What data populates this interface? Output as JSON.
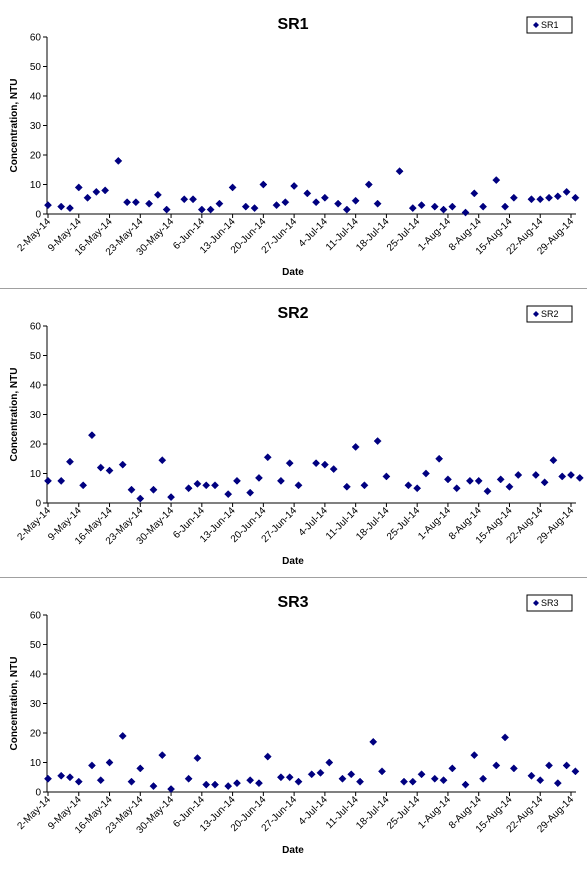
{
  "chart_data": [
    {
      "type": "scatter",
      "title": "SR1",
      "xlabel": "Date",
      "ylabel": "Concentration, NTU",
      "ylim": [
        0,
        60
      ],
      "yticks": [
        "0",
        "10",
        "20",
        "30",
        "40",
        "50",
        "60"
      ],
      "xlim": [
        "2-May-14",
        "29-Aug-14"
      ],
      "xticks": [
        "2-May-14",
        "9-May-14",
        "16-May-14",
        "23-May-14",
        "30-May-14",
        "6-Jun-14",
        "13-Jun-14",
        "20-Jun-14",
        "27-Jun-14",
        "4-Jul-14",
        "11-Jul-14",
        "18-Jul-14",
        "25-Jul-14",
        "1-Aug-14",
        "8-Aug-14",
        "15-Aug-14",
        "22-Aug-14",
        "29-Aug-14"
      ],
      "grid": false,
      "legend": "top-right",
      "series": [
        {
          "name": "SR1",
          "color": "#000080",
          "points": [
            [
              "2014-05-02",
              3
            ],
            [
              "2014-05-05",
              2.5
            ],
            [
              "2014-05-07",
              2
            ],
            [
              "2014-05-09",
              9
            ],
            [
              "2014-05-11",
              5.5
            ],
            [
              "2014-05-13",
              7.5
            ],
            [
              "2014-05-15",
              8
            ],
            [
              "2014-05-18",
              18
            ],
            [
              "2014-05-20",
              4
            ],
            [
              "2014-05-22",
              4
            ],
            [
              "2014-05-25",
              3.5
            ],
            [
              "2014-05-27",
              6.5
            ],
            [
              "2014-05-29",
              1.5
            ],
            [
              "2014-06-02",
              5
            ],
            [
              "2014-06-04",
              5
            ],
            [
              "2014-06-06",
              1.5
            ],
            [
              "2014-06-08",
              1.5
            ],
            [
              "2014-06-10",
              3.5
            ],
            [
              "2014-06-13",
              9
            ],
            [
              "2014-06-16",
              2.5
            ],
            [
              "2014-06-18",
              2
            ],
            [
              "2014-06-20",
              10
            ],
            [
              "2014-06-23",
              3
            ],
            [
              "2014-06-25",
              4
            ],
            [
              "2014-06-27",
              9.5
            ],
            [
              "2014-06-30",
              7
            ],
            [
              "2014-07-02",
              4
            ],
            [
              "2014-07-04",
              5.5
            ],
            [
              "2014-07-07",
              3.5
            ],
            [
              "2014-07-09",
              1.5
            ],
            [
              "2014-07-11",
              4.5
            ],
            [
              "2014-07-14",
              10
            ],
            [
              "2014-07-16",
              3.5
            ],
            [
              "2014-07-21",
              14.5
            ],
            [
              "2014-07-24",
              2
            ],
            [
              "2014-07-26",
              3
            ],
            [
              "2014-07-29",
              2.5
            ],
            [
              "2014-07-31",
              1.5
            ],
            [
              "2014-08-02",
              2.5
            ],
            [
              "2014-08-05",
              0.5
            ],
            [
              "2014-08-07",
              7
            ],
            [
              "2014-08-09",
              2.5
            ],
            [
              "2014-08-12",
              11.5
            ],
            [
              "2014-08-14",
              2.5
            ],
            [
              "2014-08-16",
              5.5
            ],
            [
              "2014-08-20",
              5
            ],
            [
              "2014-08-22",
              5
            ],
            [
              "2014-08-24",
              5.5
            ],
            [
              "2014-08-26",
              6
            ],
            [
              "2014-08-28",
              7.5
            ],
            [
              "2014-08-30",
              5.5
            ]
          ]
        }
      ]
    },
    {
      "type": "scatter",
      "title": "SR2",
      "xlabel": "Date",
      "ylabel": "Concentration, NTU",
      "ylim": [
        0,
        60
      ],
      "yticks": [
        "0",
        "10",
        "20",
        "30",
        "40",
        "50",
        "60"
      ],
      "xlim": [
        "2-May-14",
        "29-Aug-14"
      ],
      "xticks": [
        "2-May-14",
        "9-May-14",
        "16-May-14",
        "23-May-14",
        "30-May-14",
        "6-Jun-14",
        "13-Jun-14",
        "20-Jun-14",
        "27-Jun-14",
        "4-Jul-14",
        "11-Jul-14",
        "18-Jul-14",
        "25-Jul-14",
        "1-Aug-14",
        "8-Aug-14",
        "15-Aug-14",
        "22-Aug-14",
        "29-Aug-14"
      ],
      "grid": false,
      "legend": "top-right",
      "series": [
        {
          "name": "SR2",
          "color": "#000080",
          "points": [
            [
              "2014-05-02",
              7.5
            ],
            [
              "2014-05-05",
              7.5
            ],
            [
              "2014-05-07",
              14
            ],
            [
              "2014-05-10",
              6
            ],
            [
              "2014-05-12",
              23
            ],
            [
              "2014-05-14",
              12
            ],
            [
              "2014-05-16",
              11
            ],
            [
              "2014-05-19",
              13
            ],
            [
              "2014-05-21",
              4.5
            ],
            [
              "2014-05-23",
              1.5
            ],
            [
              "2014-05-26",
              4.5
            ],
            [
              "2014-05-28",
              14.5
            ],
            [
              "2014-05-30",
              2
            ],
            [
              "2014-06-03",
              5
            ],
            [
              "2014-06-05",
              6.5
            ],
            [
              "2014-06-07",
              6
            ],
            [
              "2014-06-09",
              6
            ],
            [
              "2014-06-12",
              3
            ],
            [
              "2014-06-14",
              7.5
            ],
            [
              "2014-06-17",
              3.5
            ],
            [
              "2014-06-19",
              8.5
            ],
            [
              "2014-06-21",
              15.5
            ],
            [
              "2014-06-24",
              7.5
            ],
            [
              "2014-06-26",
              13.5
            ],
            [
              "2014-06-28",
              6
            ],
            [
              "2014-07-02",
              13.5
            ],
            [
              "2014-07-04",
              13
            ],
            [
              "2014-07-06",
              11.5
            ],
            [
              "2014-07-09",
              5.5
            ],
            [
              "2014-07-11",
              19
            ],
            [
              "2014-07-13",
              6
            ],
            [
              "2014-07-16",
              21
            ],
            [
              "2014-07-18",
              9
            ],
            [
              "2014-07-23",
              6
            ],
            [
              "2014-07-25",
              5
            ],
            [
              "2014-07-27",
              10
            ],
            [
              "2014-07-30",
              15
            ],
            [
              "2014-08-01",
              8
            ],
            [
              "2014-08-03",
              5
            ],
            [
              "2014-08-06",
              7.5
            ],
            [
              "2014-08-08",
              7.5
            ],
            [
              "2014-08-10",
              4
            ],
            [
              "2014-08-13",
              8
            ],
            [
              "2014-08-15",
              5.5
            ],
            [
              "2014-08-17",
              9.5
            ],
            [
              "2014-08-21",
              9.5
            ],
            [
              "2014-08-23",
              7
            ],
            [
              "2014-08-25",
              14.5
            ],
            [
              "2014-08-27",
              9
            ],
            [
              "2014-08-29",
              9.5
            ],
            [
              "2014-08-31",
              8.5
            ]
          ]
        }
      ]
    },
    {
      "type": "scatter",
      "title": "SR3",
      "xlabel": "Date",
      "ylabel": "Concentration, NTU",
      "ylim": [
        0,
        60
      ],
      "yticks": [
        "0",
        "10",
        "20",
        "30",
        "40",
        "50",
        "60"
      ],
      "xlim": [
        "2-May-14",
        "29-Aug-14"
      ],
      "xticks": [
        "2-May-14",
        "9-May-14",
        "16-May-14",
        "23-May-14",
        "30-May-14",
        "6-Jun-14",
        "13-Jun-14",
        "20-Jun-14",
        "27-Jun-14",
        "4-Jul-14",
        "11-Jul-14",
        "18-Jul-14",
        "25-Jul-14",
        "1-Aug-14",
        "8-Aug-14",
        "15-Aug-14",
        "22-Aug-14",
        "29-Aug-14"
      ],
      "grid": false,
      "legend": "top-right",
      "series": [
        {
          "name": "SR3",
          "color": "#000080",
          "points": [
            [
              "2014-05-02",
              4.5
            ],
            [
              "2014-05-05",
              5.5
            ],
            [
              "2014-05-07",
              5
            ],
            [
              "2014-05-09",
              3.5
            ],
            [
              "2014-05-12",
              9
            ],
            [
              "2014-05-14",
              4
            ],
            [
              "2014-05-16",
              10
            ],
            [
              "2014-05-19",
              19
            ],
            [
              "2014-05-21",
              3.5
            ],
            [
              "2014-05-23",
              8
            ],
            [
              "2014-05-26",
              2
            ],
            [
              "2014-05-28",
              12.5
            ],
            [
              "2014-05-30",
              1
            ],
            [
              "2014-06-03",
              4.5
            ],
            [
              "2014-06-05",
              11.5
            ],
            [
              "2014-06-07",
              2.5
            ],
            [
              "2014-06-09",
              2.5
            ],
            [
              "2014-06-12",
              2
            ],
            [
              "2014-06-14",
              3
            ],
            [
              "2014-06-17",
              4
            ],
            [
              "2014-06-19",
              3
            ],
            [
              "2014-06-21",
              12
            ],
            [
              "2014-06-24",
              5
            ],
            [
              "2014-06-26",
              5
            ],
            [
              "2014-06-28",
              3.5
            ],
            [
              "2014-07-01",
              6
            ],
            [
              "2014-07-03",
              6.5
            ],
            [
              "2014-07-05",
              10
            ],
            [
              "2014-07-08",
              4.5
            ],
            [
              "2014-07-10",
              6
            ],
            [
              "2014-07-12",
              3.5
            ],
            [
              "2014-07-15",
              17
            ],
            [
              "2014-07-17",
              7
            ],
            [
              "2014-07-22",
              3.5
            ],
            [
              "2014-07-24",
              3.5
            ],
            [
              "2014-07-26",
              6
            ],
            [
              "2014-07-29",
              4.5
            ],
            [
              "2014-07-31",
              4
            ],
            [
              "2014-08-02",
              8
            ],
            [
              "2014-08-05",
              2.5
            ],
            [
              "2014-08-07",
              12.5
            ],
            [
              "2014-08-09",
              4.5
            ],
            [
              "2014-08-12",
              9
            ],
            [
              "2014-08-14",
              18.5
            ],
            [
              "2014-08-16",
              8
            ],
            [
              "2014-08-20",
              5.5
            ],
            [
              "2014-08-22",
              4
            ],
            [
              "2014-08-24",
              9
            ],
            [
              "2014-08-26",
              3
            ],
            [
              "2014-08-28",
              9
            ],
            [
              "2014-08-30",
              7
            ]
          ]
        }
      ]
    }
  ]
}
